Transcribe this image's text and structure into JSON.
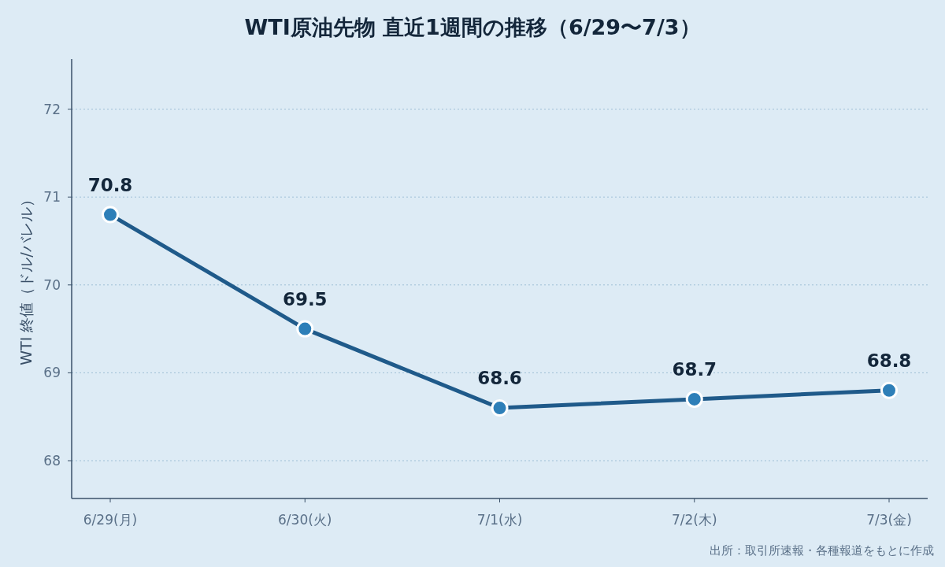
{
  "chart_data": {
    "type": "line",
    "title": "WTI原油先物 直近1週間の推移（6/29〜7/3）",
    "ylabel": "WTI 終値（ドル/バレル）",
    "categories": [
      "6/29(月)",
      "6/30(火)",
      "7/1(水)",
      "7/2(木)",
      "7/3(金)"
    ],
    "series": [
      {
        "color": "#1f5a8a",
        "values": [
          70.8,
          69.5,
          68.6,
          68.7,
          68.8
        ]
      }
    ],
    "ylim": [
      67.57,
      72.57
    ],
    "yticks": [
      68,
      69,
      70,
      71,
      72
    ],
    "grid": "y",
    "marker": "circle",
    "line_style": "solid",
    "data_labels": true,
    "annotations": [
      "出所：取引所速報・各種報道をもとに作成"
    ]
  }
}
